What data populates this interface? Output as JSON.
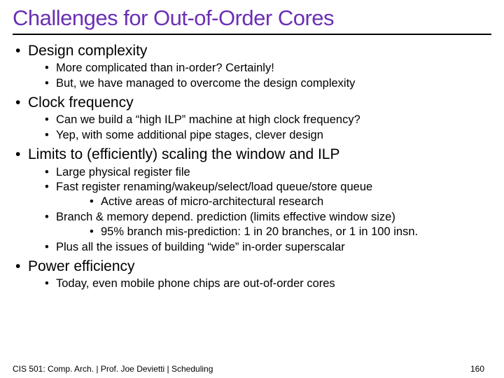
{
  "title": "Challenges for Out-of-Order Cores",
  "bullets": {
    "b1": "Design complexity",
    "b1_1": "More complicated than in-order?  Certainly!",
    "b1_2": "But, we have managed to overcome the design complexity",
    "b2": "Clock frequency",
    "b2_1": "Can we build a “high ILP” machine at high clock frequency?",
    "b2_2": "Yep, with some additional pipe stages, clever design",
    "b3": "Limits to (efficiently) scaling the window and ILP",
    "b3_1": "Large physical register file",
    "b3_2": "Fast register renaming/wakeup/select/load queue/store queue",
    "b3_2_1": "Active areas of micro-architectural research",
    "b3_3": "Branch & memory depend. prediction (limits effective window size)",
    "b3_3_1": "95% branch mis-prediction: 1 in 20 branches, or 1 in 100 insn.",
    "b3_4": "Plus all the issues of building “wide” in-order superscalar",
    "b4": "Power efficiency",
    "b4_1": "Today, even mobile phone chips are out-of-order cores"
  },
  "footer": {
    "text": "CIS 501: Comp. Arch.  |  Prof. Joe Devietti  |  Scheduling",
    "page": "160"
  },
  "colors": {
    "title": "#6a2fb5",
    "rule": "#000000",
    "text": "#000000",
    "background": "#ffffff"
  }
}
